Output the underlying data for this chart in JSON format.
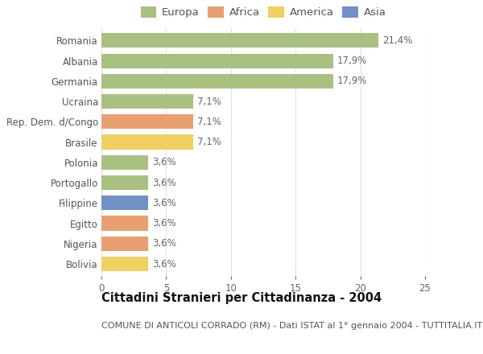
{
  "categories": [
    "Romania",
    "Albania",
    "Germania",
    "Ucraina",
    "Rep. Dem. d/Congo",
    "Brasile",
    "Polonia",
    "Portogallo",
    "Filippine",
    "Egitto",
    "Nigeria",
    "Bolivia"
  ],
  "values": [
    21.4,
    17.9,
    17.9,
    7.1,
    7.1,
    7.1,
    3.6,
    3.6,
    3.6,
    3.6,
    3.6,
    3.6
  ],
  "labels": [
    "21,4%",
    "17,9%",
    "17,9%",
    "7,1%",
    "7,1%",
    "7,1%",
    "3,6%",
    "3,6%",
    "3,6%",
    "3,6%",
    "3,6%",
    "3,6%"
  ],
  "colors": [
    "#a8c080",
    "#a8c080",
    "#a8c080",
    "#a8c080",
    "#e8a070",
    "#f0d060",
    "#a8c080",
    "#a8c080",
    "#7090c8",
    "#e8a070",
    "#e8a070",
    "#f0d060"
  ],
  "legend_labels": [
    "Europa",
    "Africa",
    "America",
    "Asia"
  ],
  "legend_colors": [
    "#a8c080",
    "#e8a070",
    "#f0d060",
    "#7090c8"
  ],
  "title": "Cittadini Stranieri per Cittadinanza - 2004",
  "subtitle": "COMUNE DI ANTICOLI CORRADO (RM) - Dati ISTAT al 1° gennaio 2004 - TUTTITALIA.IT",
  "xlim": [
    0,
    25
  ],
  "xticks": [
    0,
    5,
    10,
    15,
    20,
    25
  ],
  "background_color": "#ffffff",
  "grid_color": "#e0e0e0",
  "bar_height": 0.72,
  "label_fontsize": 8.5,
  "title_fontsize": 10.5,
  "subtitle_fontsize": 8,
  "tick_fontsize": 8.5,
  "legend_fontsize": 9.5
}
